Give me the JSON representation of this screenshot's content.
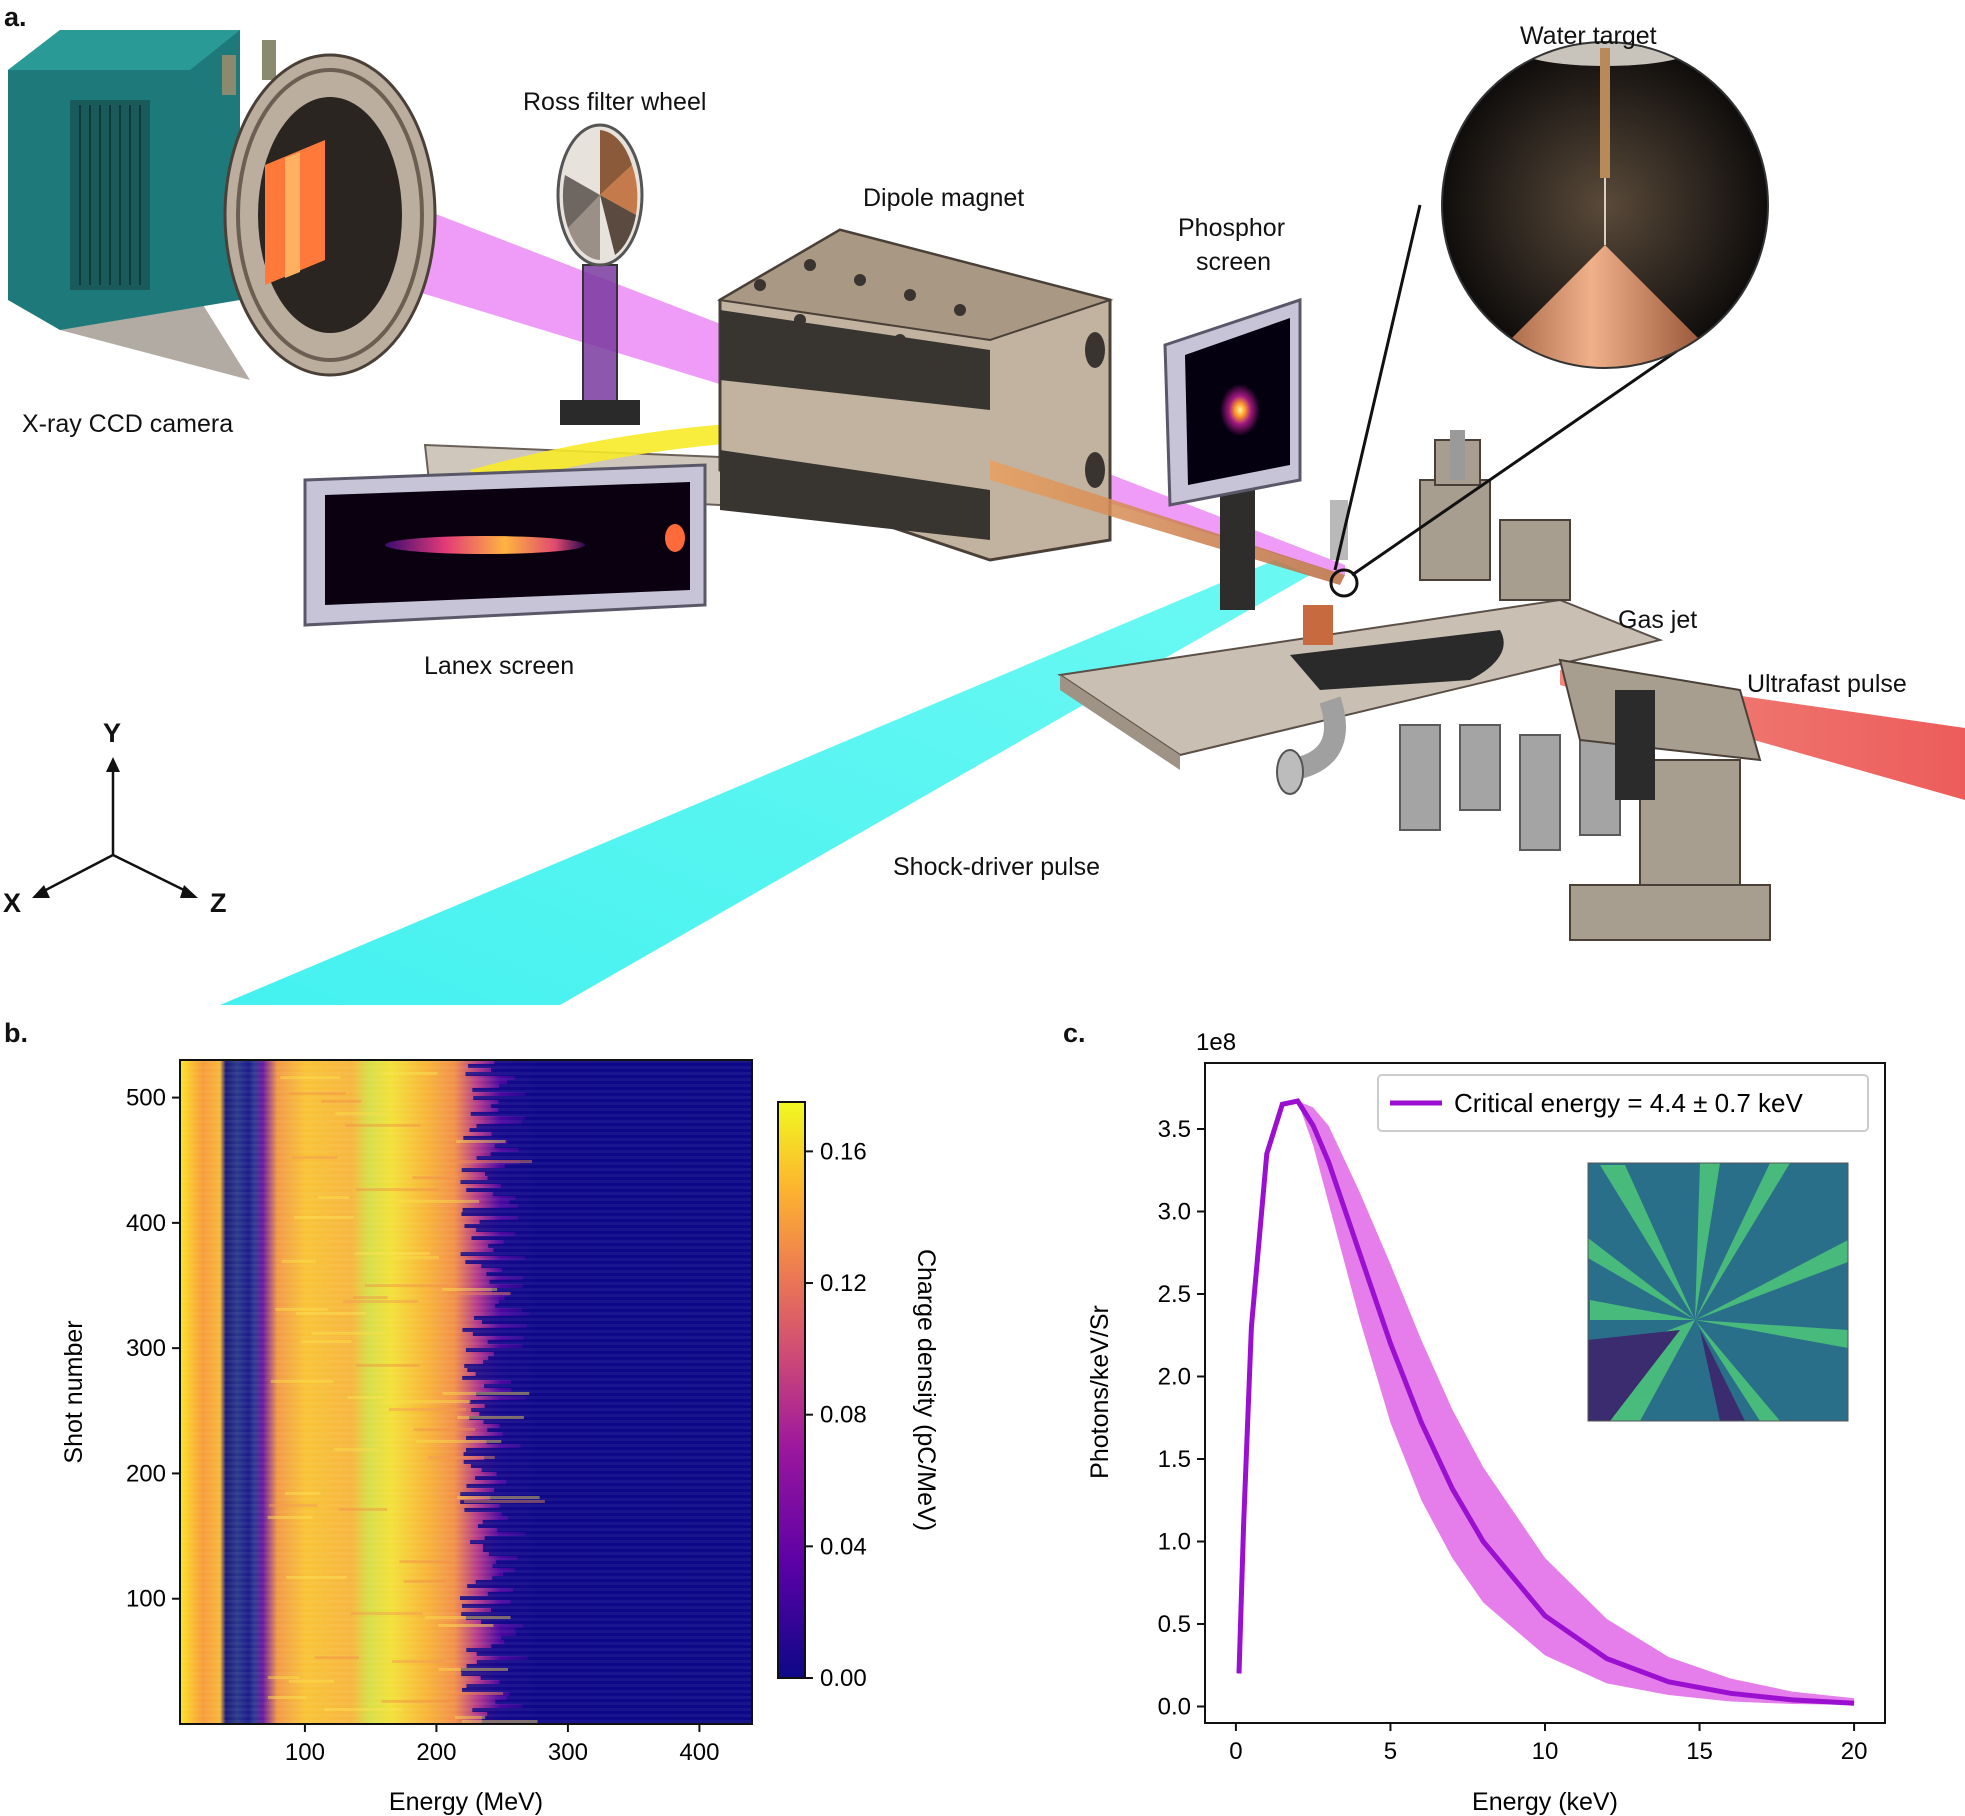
{
  "panel_a": {
    "letter": "a.",
    "labels": {
      "water_target": "Water target",
      "ross_filter_wheel": "Ross filter wheel",
      "dipole_magnet": "Dipole magnet",
      "phosphor_screen_line1": "Phosphor",
      "phosphor_screen_line2": "screen",
      "xray_ccd_camera": "X-ray CCD camera",
      "lanex_screen": "Lanex screen",
      "gas_jet": "Gas jet",
      "ultrafast_pulse": "Ultrafast pulse",
      "shock_driver_pulse": "Shock-driver pulse"
    },
    "axes": {
      "y": "Y",
      "x": "X",
      "z": "Z"
    },
    "colors": {
      "xray_beam": "#e040fb",
      "electron_beam_yellow": "#f5e61e",
      "shock_driver": "#3ff5f0",
      "ultrafast": "#f06060",
      "electron_orange": "#f0a050",
      "camera_teal": "#1f7a7a",
      "metal": "#b5a89a"
    }
  },
  "panel_b": {
    "letter": "b.",
    "colorbar_label": "Charge density (pC/MeV)",
    "colorbar_ticks": [
      "0.00",
      "0.04",
      "0.08",
      "0.12",
      "0.16"
    ],
    "chart_data": {
      "type": "heatmap",
      "xlabel": "Energy (MeV)",
      "ylabel": "Shot number",
      "xlim": [
        5,
        440
      ],
      "ylim": [
        0,
        530
      ],
      "x_ticks": [
        100,
        200,
        300,
        400
      ],
      "y_ticks": [
        100,
        200,
        300,
        400,
        500
      ],
      "colorbar_range": [
        0.0,
        0.175
      ],
      "colormap": "plasma"
    }
  },
  "panel_c": {
    "letter": "c.",
    "y_multiplier": "1e8",
    "legend": "Critical energy = 4.4 ± 0.7 keV",
    "chart_data": {
      "type": "line",
      "xlabel": "Energy (keV)",
      "ylabel": "Photons/keV/Sr",
      "xlim": [
        -1,
        21
      ],
      "ylim": [
        -0.1,
        3.9
      ],
      "x_ticks": [
        0,
        5,
        10,
        15,
        20
      ],
      "y_ticks": [
        0.0,
        0.5,
        1.0,
        1.5,
        2.0,
        2.5,
        3.0,
        3.5
      ],
      "series": [
        {
          "name": "Critical energy = 4.4 ± 0.7 keV",
          "color": "#9b0fd1",
          "band_color": "#e066e6",
          "x": [
            0.1,
            0.25,
            0.5,
            1.0,
            1.5,
            2.0,
            2.5,
            3.0,
            4.0,
            5.0,
            6.0,
            7.0,
            8.0,
            10.0,
            12.0,
            14.0,
            16.0,
            18.0,
            20.0
          ],
          "y": [
            0.2,
            1.1,
            2.3,
            3.35,
            3.65,
            3.67,
            3.52,
            3.3,
            2.75,
            2.2,
            1.72,
            1.32,
            1.0,
            0.55,
            0.29,
            0.15,
            0.08,
            0.04,
            0.02
          ],
          "y_lower": [
            0.2,
            1.1,
            2.3,
            3.35,
            3.65,
            3.67,
            3.4,
            3.05,
            2.35,
            1.72,
            1.25,
            0.9,
            0.63,
            0.31,
            0.14,
            0.07,
            0.03,
            0.015,
            0.01
          ],
          "y_upper": [
            0.2,
            1.1,
            2.3,
            3.35,
            3.65,
            3.67,
            3.63,
            3.52,
            3.12,
            2.68,
            2.22,
            1.8,
            1.45,
            0.9,
            0.53,
            0.3,
            0.17,
            0.09,
            0.05
          ]
        }
      ]
    }
  }
}
